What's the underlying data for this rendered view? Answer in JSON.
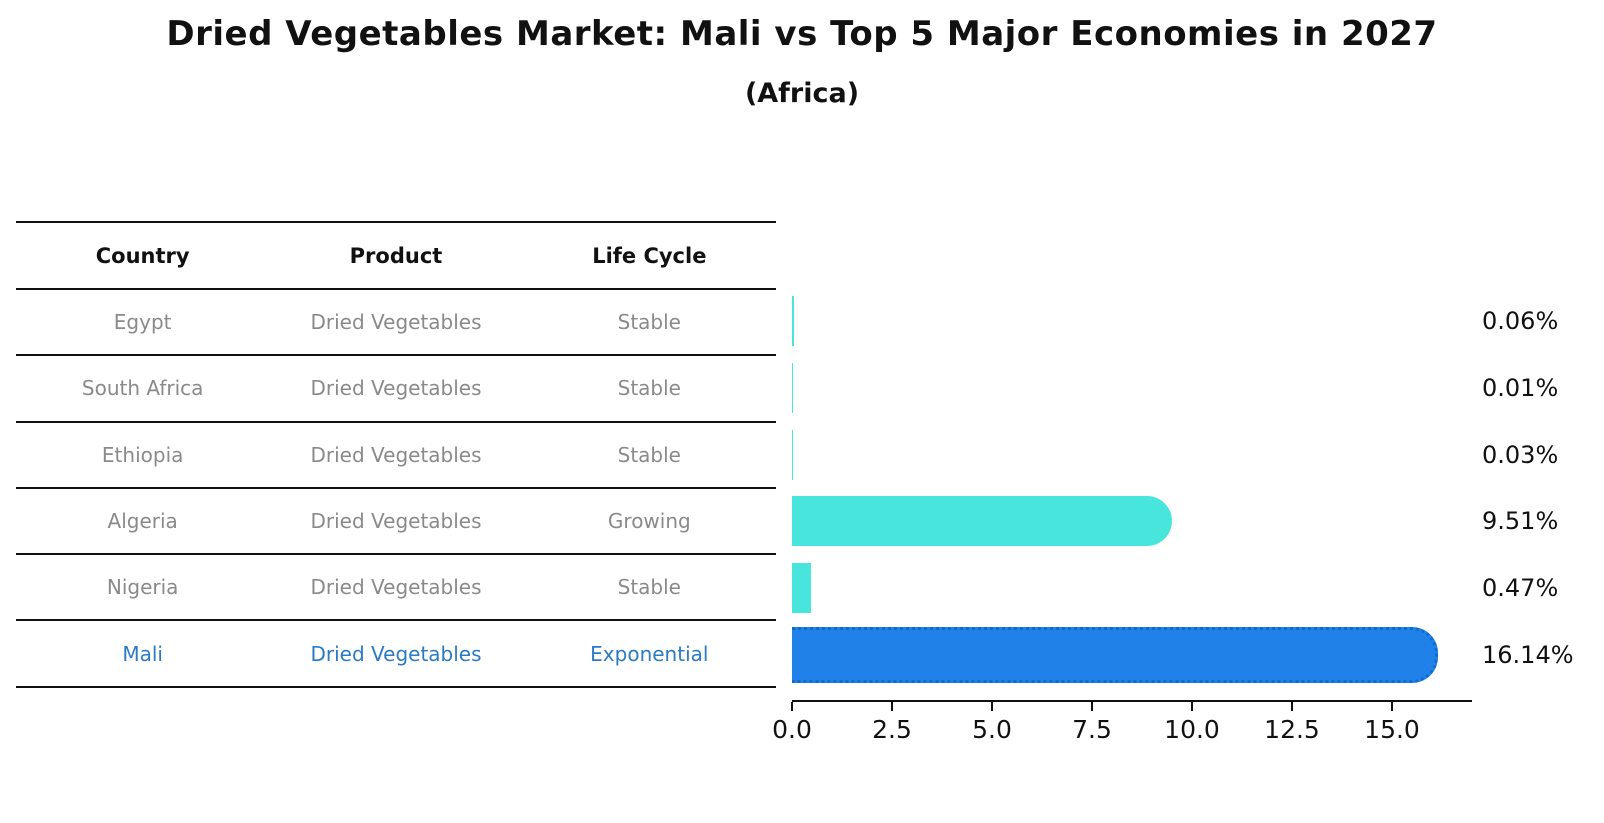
{
  "title": "Dried Vegetables Market: Mali vs Top 5 Major Economies in 2027",
  "subtitle": "(Africa)",
  "table": {
    "headers": [
      "Country",
      "Product",
      "Life Cycle"
    ],
    "rows": [
      {
        "country": "Egypt",
        "product": "Dried Vegetables",
        "life_cycle": "Stable",
        "highlight": false
      },
      {
        "country": "South Africa",
        "product": "Dried Vegetables",
        "life_cycle": "Stable",
        "highlight": false
      },
      {
        "country": "Ethiopia",
        "product": "Dried Vegetables",
        "life_cycle": "Stable",
        "highlight": false
      },
      {
        "country": "Algeria",
        "product": "Dried Vegetables",
        "life_cycle": "Growing",
        "highlight": false
      },
      {
        "country": "Nigeria",
        "product": "Dried Vegetables",
        "life_cycle": "Stable",
        "highlight": false
      },
      {
        "country": "Mali",
        "product": "Dried Vegetables",
        "life_cycle": "Exponential",
        "highlight": true
      }
    ]
  },
  "chart_data": {
    "type": "bar",
    "orientation": "horizontal",
    "title": "Dried Vegetables Market: Mali vs Top 5 Major Economies in 2027 (Africa)",
    "categories": [
      "Egypt",
      "South Africa",
      "Ethiopia",
      "Algeria",
      "Nigeria",
      "Mali"
    ],
    "values": [
      0.06,
      0.01,
      0.03,
      9.51,
      0.47,
      16.14
    ],
    "value_labels": [
      "0.06%",
      "0.01%",
      "0.03%",
      "9.51%",
      "0.47%",
      "16.14%"
    ],
    "xlabel": "",
    "ylabel": "",
    "xlim": [
      0,
      17
    ],
    "xticks": [
      0.0,
      2.5,
      5.0,
      7.5,
      10.0,
      12.5,
      15.0
    ],
    "xtick_labels": [
      "0.0",
      "2.5",
      "5.0",
      "7.5",
      "10.0",
      "12.5",
      "15.0"
    ],
    "grid": false,
    "legend": "none",
    "colors": {
      "bar_default": "#48e5dc",
      "bar_highlight": "#2081e8",
      "highlight_text": "#2b7bc4",
      "row_text": "#8a8a8a",
      "axis": "#111111"
    }
  }
}
